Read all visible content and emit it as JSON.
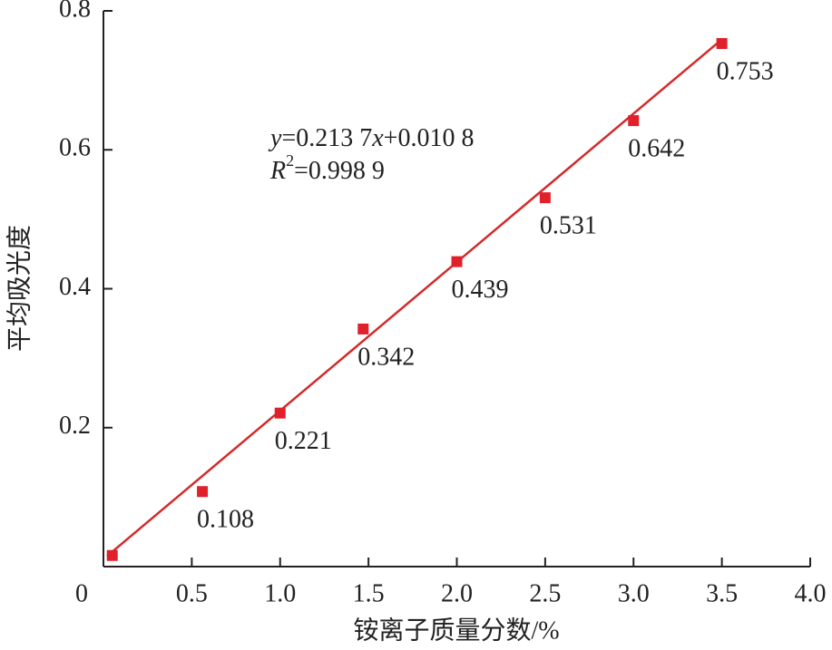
{
  "chart_data": {
    "type": "scatter",
    "x_label": "铵离子质量分数/%",
    "y_label": "平均吸光度",
    "origin_label": "0",
    "x": [
      0.05,
      0.56,
      1.0,
      1.47,
      2.0,
      2.5,
      3.0,
      3.5
    ],
    "values": [
      0.016,
      0.108,
      0.221,
      0.342,
      0.439,
      0.531,
      0.642,
      0.753
    ],
    "value_labels": [
      null,
      "0.108",
      "0.221",
      "0.342",
      "0.439",
      "0.531",
      "0.642",
      "0.753"
    ],
    "color": "#e0202a",
    "fit_line": {
      "x": [
        0.02,
        3.5
      ],
      "values": [
        0.015,
        0.759
      ],
      "color": "#d42a2a"
    },
    "equation": [
      "y",
      "=0.213 7",
      "x",
      "+0.010 8"
    ],
    "r_squared": [
      "R",
      "2",
      "=0.998 9"
    ],
    "xlim": [
      0,
      4
    ],
    "ylim": [
      0,
      0.8
    ],
    "xticks": [
      0.5,
      {
        "value": 1,
        "label": "1.0"
      },
      1.5,
      {
        "value": 2,
        "label": "2.0"
      },
      2.5,
      {
        "value": 3,
        "label": "3.0"
      },
      3.5,
      {
        "value": 4,
        "label": "4.0"
      }
    ],
    "yticks": [
      0.2,
      0.4,
      0.6,
      0.8
    ]
  }
}
